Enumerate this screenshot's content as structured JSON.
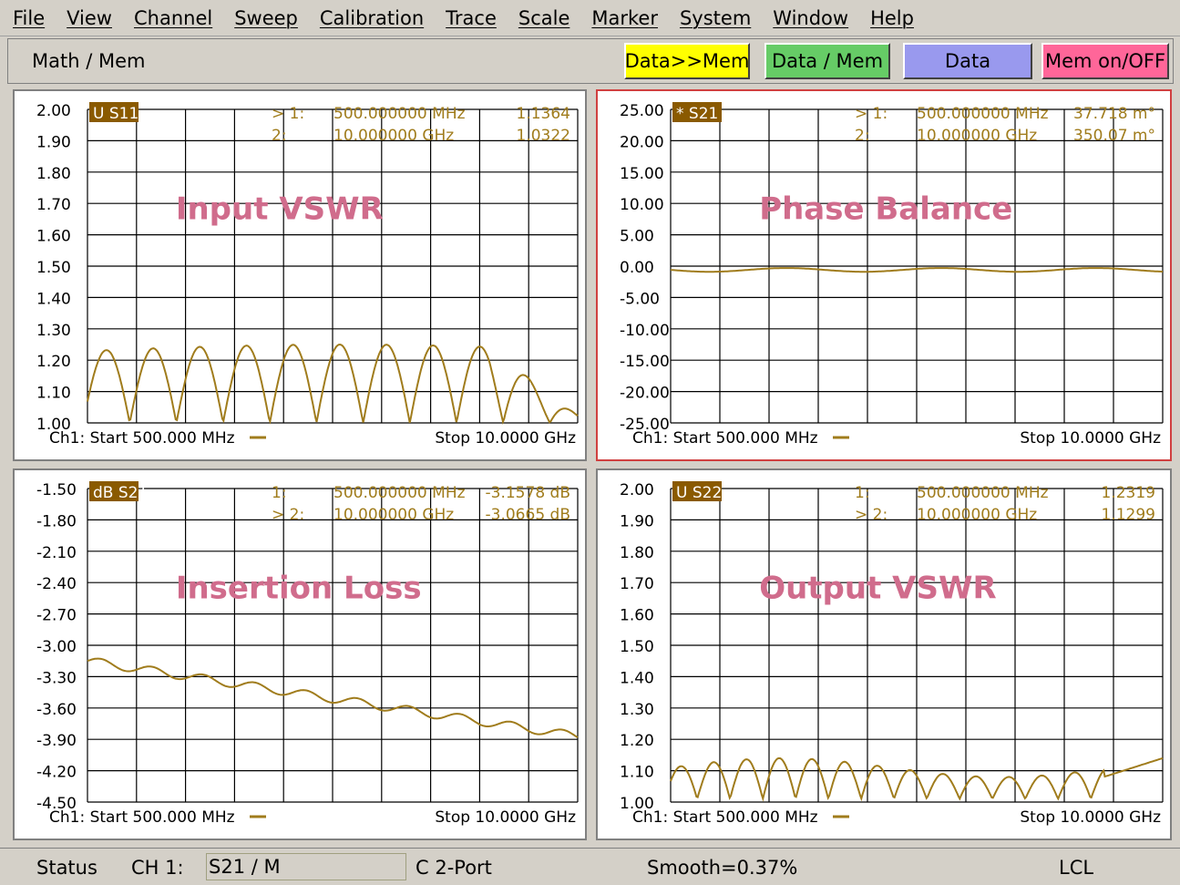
{
  "menu": [
    "File",
    "View",
    "Channel",
    "Sweep",
    "Calibration",
    "Trace",
    "Scale",
    "Marker",
    "System",
    "Window",
    "Help"
  ],
  "softkeys": {
    "title": "Math / Mem",
    "buttons": [
      {
        "label": "Data>>Mem",
        "color": "#ffff00"
      },
      {
        "label": "Data / Mem",
        "color": "#66cc66"
      },
      {
        "label": "Data",
        "color": "#9999ee"
      },
      {
        "label": "Mem on/OFF",
        "color": "#ff6699"
      }
    ]
  },
  "colors": {
    "trace": "#a07c1c",
    "annotation": "#d06c8c",
    "grid": "#000000",
    "badge": "#8a5a00",
    "active_border": "#d04040"
  },
  "panels": [
    {
      "id": "input-vswr",
      "title": "Input VSWR",
      "badge": "U S11",
      "y_ticks": [
        "2.00",
        "1.90",
        "1.80",
        "1.70",
        "1.60",
        "1.50",
        "1.40",
        "1.30",
        "1.20",
        "1.10",
        "1.00"
      ],
      "markers": [
        {
          "arrow": ">",
          "num": "1:",
          "freq": "500.000000 MHz",
          "val": "1.1364"
        },
        {
          "arrow": "",
          "num": "2:",
          "freq": "10.000000 GHz",
          "val": "1.0322"
        }
      ],
      "start": "Ch1: Start 500.000 MHz",
      "stop": "Stop 10.0000 GHz",
      "active": false
    },
    {
      "id": "phase-balance",
      "title": "Phase Balance",
      "badge": "* S21",
      "y_ticks": [
        "25.00",
        "20.00",
        "15.00",
        "10.00",
        "5.00",
        "0.00",
        "-5.00",
        "-10.00",
        "-15.00",
        "-20.00",
        "-25.00"
      ],
      "markers": [
        {
          "arrow": ">",
          "num": "1:",
          "freq": "500.000000 MHz",
          "val": "37.718 m°"
        },
        {
          "arrow": "",
          "num": "2:",
          "freq": "10.000000 GHz",
          "val": "350.07 m°"
        }
      ],
      "start": "Ch1: Start 500.000 MHz",
      "stop": "Stop 10.0000 GHz",
      "active": true
    },
    {
      "id": "insertion-loss",
      "title": "Insertion Loss",
      "badge": "dB S21",
      "y_ticks": [
        "-1.50",
        "-1.80",
        "-2.10",
        "-2.40",
        "-2.70",
        "-3.00",
        "-3.30",
        "-3.60",
        "-3.90",
        "-4.20",
        "-4.50"
      ],
      "markers": [
        {
          "arrow": "",
          "num": "1:",
          "freq": "500.000000 MHz",
          "val": "-3.1578 dB"
        },
        {
          "arrow": ">",
          "num": "2:",
          "freq": "10.000000 GHz",
          "val": "-3.0665 dB"
        }
      ],
      "start": "Ch1: Start 500.000 MHz",
      "stop": "Stop 10.0000 GHz",
      "active": false
    },
    {
      "id": "output-vswr",
      "title": "Output VSWR",
      "badge": "U S22",
      "y_ticks": [
        "2.00",
        "1.90",
        "1.80",
        "1.70",
        "1.60",
        "1.50",
        "1.40",
        "1.30",
        "1.20",
        "1.10",
        "1.00"
      ],
      "markers": [
        {
          "arrow": "",
          "num": "1:",
          "freq": "500.000000 MHz",
          "val": "1.2319"
        },
        {
          "arrow": ">",
          "num": "2:",
          "freq": "10.000000 GHz",
          "val": "1.1299"
        }
      ],
      "start": "Ch1: Start 500.000 MHz",
      "stop": "Stop 10.0000 GHz",
      "active": false
    }
  ],
  "status": {
    "label": "Status",
    "channel": "CH 1:",
    "trace": "S21 / M",
    "mode": "C  2-Port",
    "smooth": "Smooth=0.37%",
    "remote": "LCL"
  }
}
